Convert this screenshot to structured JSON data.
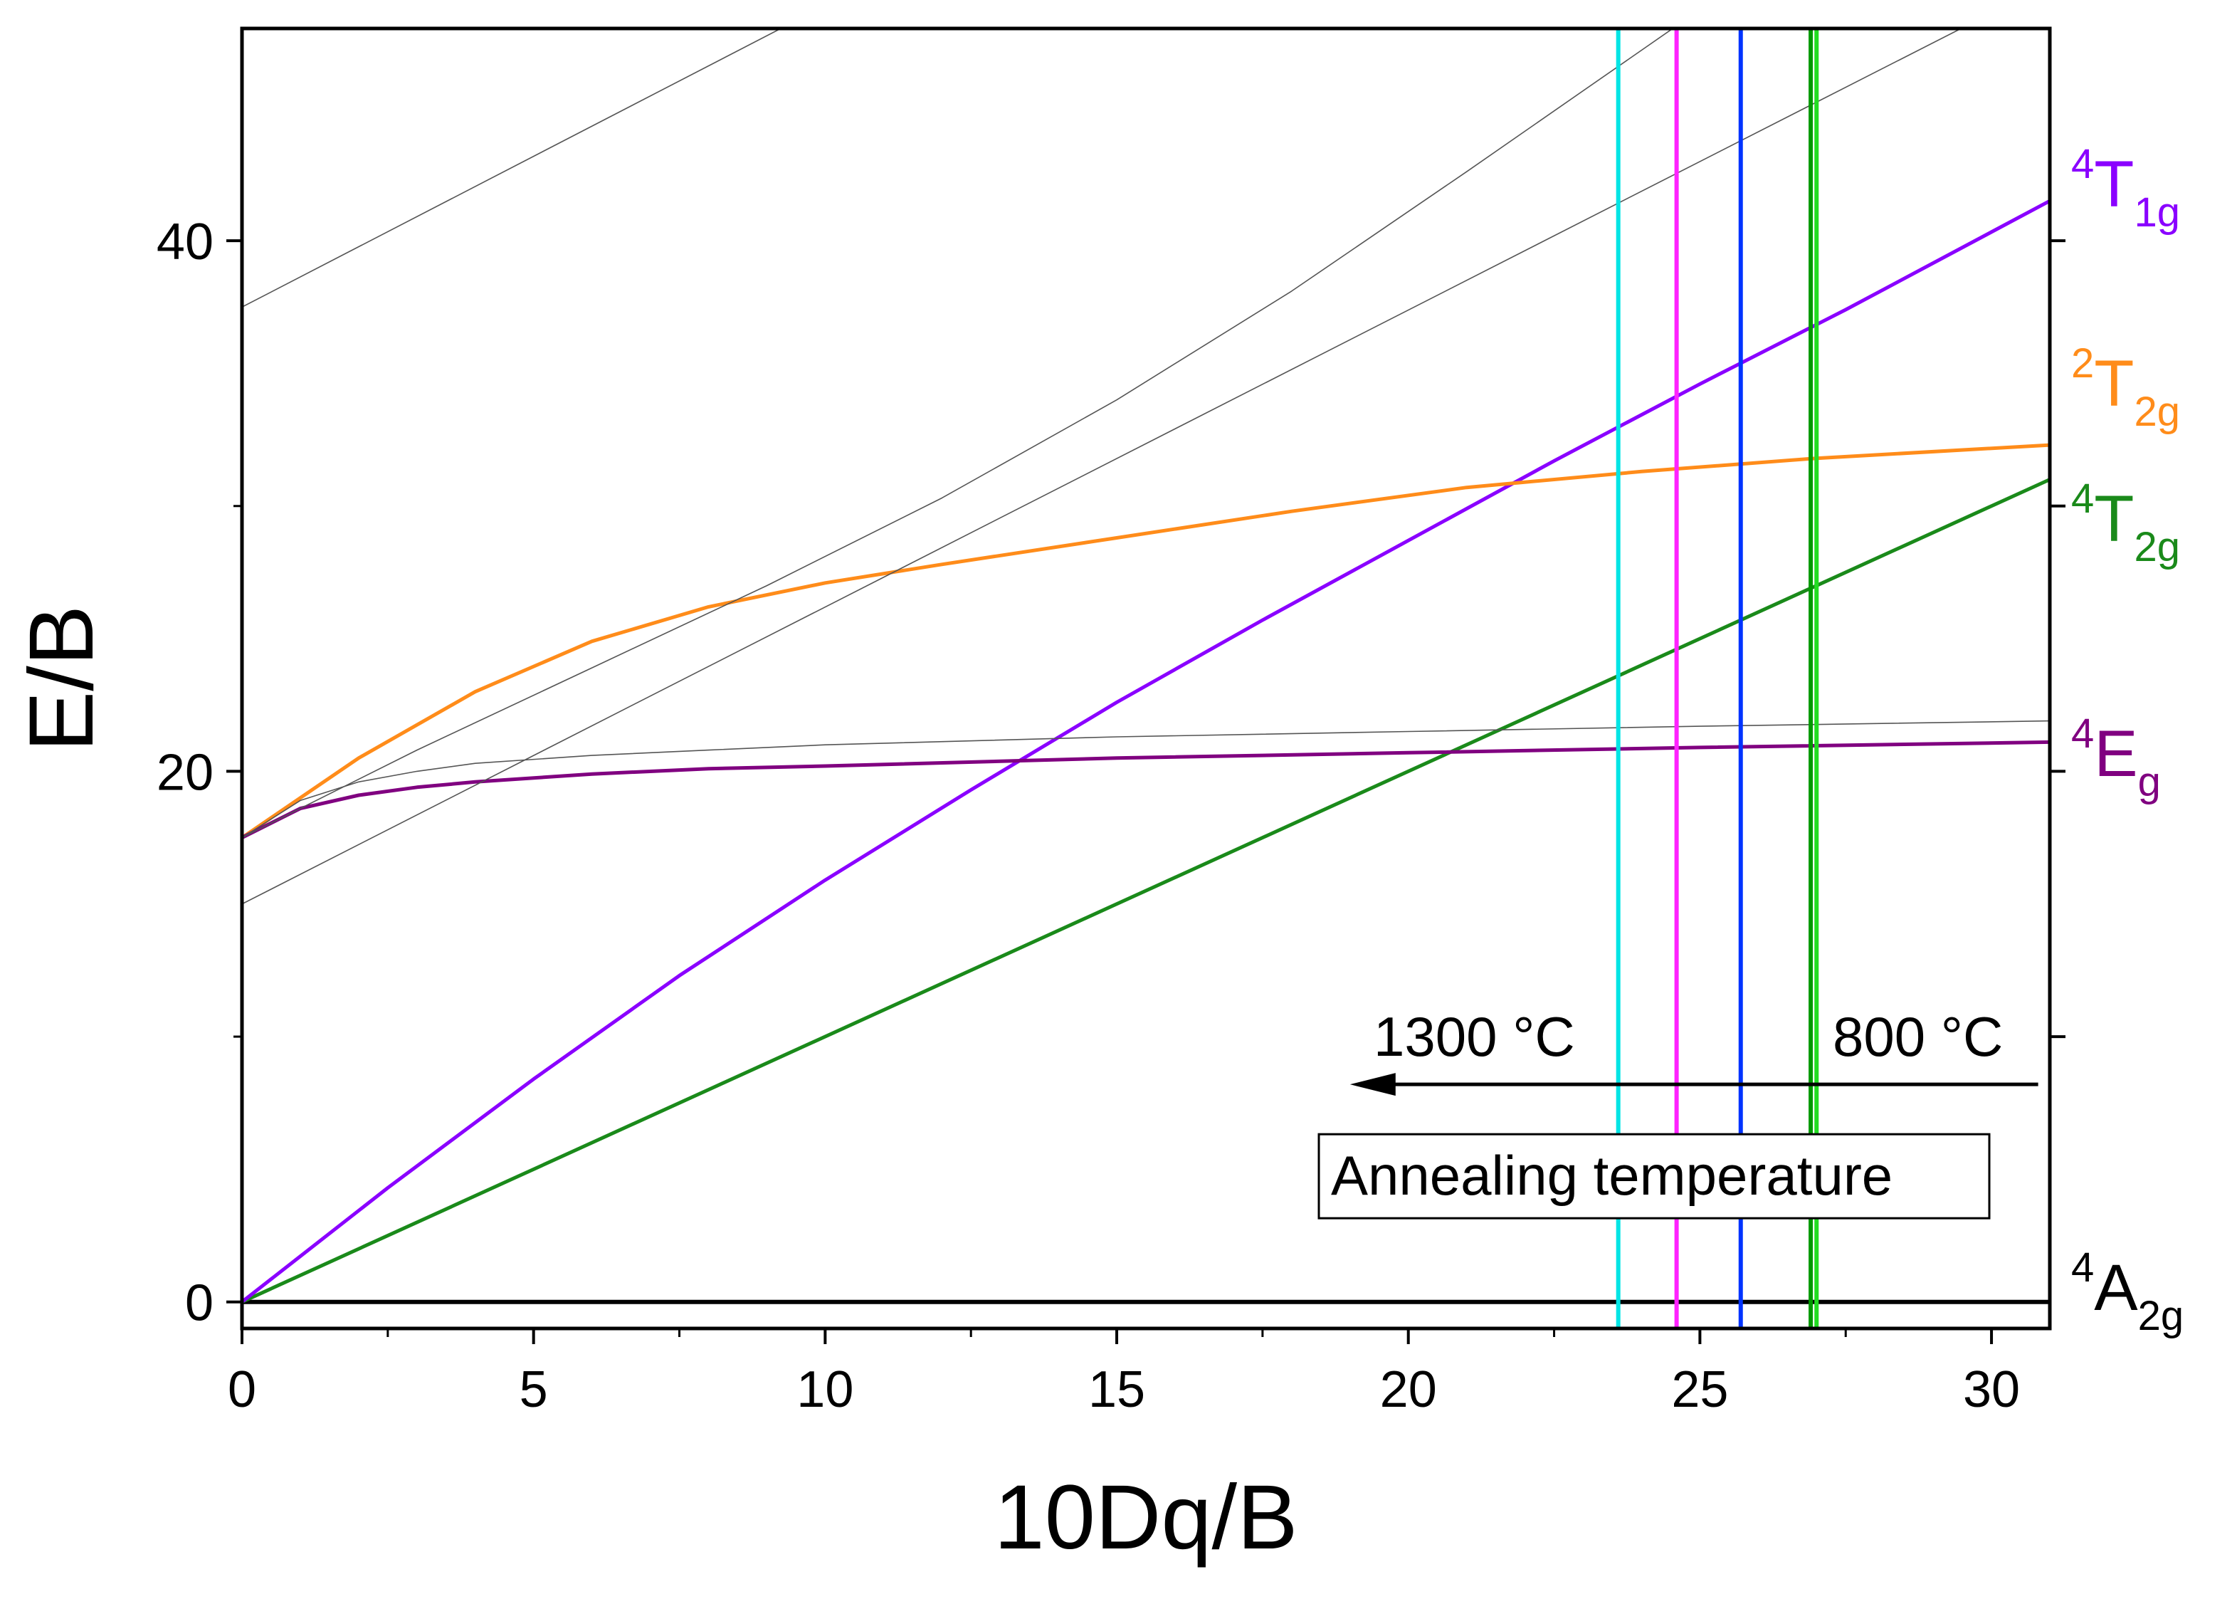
{
  "chart_data": {
    "type": "line",
    "title": "",
    "xlabel": "10Dq/B",
    "ylabel": "E/B",
    "xlim": [
      0,
      31
    ],
    "ylim": [
      -1,
      48
    ],
    "x_ticks": [
      0,
      5,
      10,
      15,
      20,
      25,
      30
    ],
    "x_tick_labels": [
      "0",
      "5",
      "10",
      "15",
      "20",
      "25",
      "30"
    ],
    "y_ticks": [
      0,
      20,
      40
    ],
    "y_tick_labels": [
      "0",
      "20",
      "40"
    ],
    "right_ticks": [
      10,
      20,
      30,
      40
    ],
    "grid": false,
    "series": [
      {
        "name": "4A2g",
        "label": {
          "sup": "4",
          "main": "A",
          "sub": "2g"
        },
        "color": "#000000",
        "width": 6,
        "x": [
          0,
          31
        ],
        "y": [
          0,
          0
        ]
      },
      {
        "name": "4T2g",
        "label": {
          "sup": "4",
          "main": "T",
          "sub": "2g"
        },
        "color": "#1a8a1a",
        "width": 5,
        "x": [
          0,
          31
        ],
        "y": [
          0,
          31
        ]
      },
      {
        "name": "4T1g",
        "label": {
          "sup": "4",
          "main": "T",
          "sub": "1g"
        },
        "color": "#8a00ff",
        "width": 5,
        "x": [
          0,
          2.5,
          5,
          7.5,
          10,
          12.5,
          15,
          17.5,
          20,
          22.5,
          25,
          27.5,
          31
        ],
        "y": [
          0,
          4.3,
          8.4,
          12.3,
          15.9,
          19.3,
          22.6,
          25.7,
          28.7,
          31.7,
          34.6,
          37.4,
          41.5
        ]
      },
      {
        "name": "2T2g",
        "label": {
          "sup": "2",
          "main": "T",
          "sub": "2g"
        },
        "color": "#ff8c1a",
        "width": 5,
        "x": [
          0,
          2,
          4,
          6,
          8,
          10,
          12,
          15,
          18,
          21,
          24,
          27,
          31
        ],
        "y": [
          17.5,
          20.5,
          23.0,
          24.9,
          26.2,
          27.1,
          27.8,
          28.8,
          29.8,
          30.7,
          31.3,
          31.8,
          32.3
        ]
      },
      {
        "name": "4Eg",
        "label": {
          "sup": "4",
          "main": "E",
          "sub": "g"
        },
        "color": "#800080",
        "width": 5,
        "x": [
          0,
          1,
          2,
          3,
          4,
          6,
          8,
          10,
          15,
          20,
          25,
          31
        ],
        "y": [
          17.5,
          18.6,
          19.1,
          19.4,
          19.6,
          19.9,
          20.1,
          20.2,
          20.5,
          20.7,
          20.9,
          21.1
        ]
      },
      {
        "name": "g1",
        "color": "#555555",
        "width": 1.6,
        "x": [
          0,
          1,
          2,
          3,
          4,
          6,
          8,
          10,
          15,
          20,
          25,
          31
        ],
        "y": [
          17.5,
          18.9,
          19.6,
          20.0,
          20.3,
          20.6,
          20.8,
          21.0,
          21.3,
          21.5,
          21.7,
          21.9
        ]
      },
      {
        "name": "g2",
        "color": "#555555",
        "width": 1.6,
        "x": [
          0,
          31
        ],
        "y": [
          15.0,
          49.7
        ]
      },
      {
        "name": "g3",
        "color": "#555555",
        "width": 1.6,
        "x": [
          0,
          3,
          6,
          9,
          12,
          15,
          18,
          21,
          26.5
        ],
        "y": [
          17.5,
          20.8,
          23.9,
          27.0,
          30.3,
          34.0,
          38.1,
          42.6,
          51.0
        ]
      },
      {
        "name": "g4",
        "color": "#555555",
        "width": 1.6,
        "x": [
          0,
          11
        ],
        "y": [
          37.5,
          50.0
        ]
      }
    ],
    "vertical_lines": [
      {
        "name": "cyan-line",
        "x": 23.6,
        "color": "#00e5e5"
      },
      {
        "name": "magenta-line",
        "x": 24.6,
        "color": "#ff22ff"
      },
      {
        "name": "blue-line",
        "x": 25.7,
        "color": "#0033ff"
      },
      {
        "name": "darkgreen-line",
        "x": 26.9,
        "color": "#009900"
      },
      {
        "name": "lime-line",
        "x": 27.0,
        "color": "#22dd22"
      }
    ],
    "annotations": {
      "high_temp": "1300 °C",
      "low_temp": "800 °C",
      "arrow_from": 30.8,
      "arrow_to": 19.0,
      "arrow_y": 8.2,
      "box_text": "Annealing temperature"
    }
  }
}
